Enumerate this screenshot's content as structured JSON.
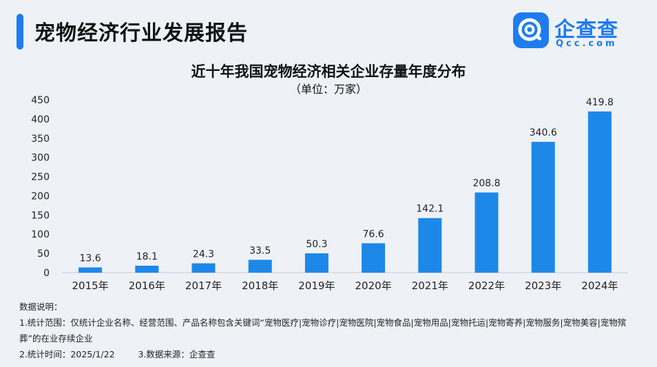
{
  "header": {
    "title": "宠物经济行业发展报告"
  },
  "logo": {
    "name": "企查查",
    "sub": "Qcc.com"
  },
  "colors": {
    "accent": "#1e7bf0",
    "bar": "#1e88e8",
    "background": "#eef1f6"
  },
  "chart_data": {
    "type": "bar",
    "title": "近十年我国宠物经济相关企业存量年度分布",
    "subtitle": "（单位：万家）",
    "categories": [
      "2015年",
      "2016年",
      "2017年",
      "2018年",
      "2019年",
      "2020年",
      "2021年",
      "2022年",
      "2023年",
      "2024年"
    ],
    "values": [
      13.6,
      18.1,
      24.3,
      33.5,
      50.3,
      76.6,
      142.1,
      208.8,
      340.6,
      419.8
    ],
    "value_labels": [
      "13.6",
      "18.1",
      "24.3",
      "33.5",
      "50.3",
      "76.6",
      "142.1",
      "208.8",
      "340.6",
      "419.8"
    ],
    "yticks": [
      "0",
      "50",
      "100",
      "150",
      "200",
      "250",
      "300",
      "350",
      "400",
      "450"
    ],
    "ylim": [
      0,
      450
    ],
    "grid": false,
    "legend": "none"
  },
  "notes": {
    "heading": "数据说明：",
    "item1": "1.统计范围：仅统计企业名称、经营范围、产品名称包含关键词“宠物医疗|宠物诊疗|宠物医院|宠物食品|宠物用品|宠物托运|宠物寄养|宠物服务|宠物美容|宠物殡葬”的在业存续企业",
    "item2": "2.统计时间：2025/1/22",
    "item3": "3.数据来源：企查查"
  }
}
